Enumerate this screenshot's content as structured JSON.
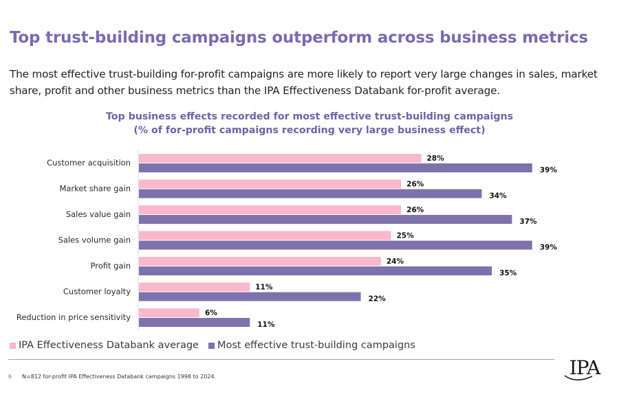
{
  "page": {
    "title": "Top trust-building campaigns outperform across business metrics",
    "lede": "The most effective trust-building for-profit campaigns are more likely to report very large changes in sales, market share, profit and other business metrics than the IPA Effectiveness Databank for-profit average.",
    "page_number": "6",
    "footnote": "N=812 for-profit IPA Effectiveness Databank campaigns 1998 to 2024.",
    "logo_text": "IPA"
  },
  "colors": {
    "title": "#7B6BAE",
    "average_series": "#F9B8CB",
    "trust_series": "#7E72AD",
    "rule": "#A79CCB"
  },
  "chart_data": {
    "type": "bar",
    "orientation": "horizontal",
    "title": "Top business effects recorded for most effective trust-building campaigns",
    "subtitle": "(% of for-profit campaigns recording very large business effect)",
    "xlabel": "",
    "ylabel": "",
    "xlim": [
      0,
      40
    ],
    "grid": false,
    "legend_position": "bottom-left",
    "categories": [
      "Customer acquisition",
      "Market share gain",
      "Sales value gain",
      "Sales volume gain",
      "Profit gain",
      "Customer loyalty",
      "Reduction in price sensitivity"
    ],
    "series": [
      {
        "name": "IPA Effectiveness Databank average",
        "color": "#F9B8CB",
        "values": [
          28,
          26,
          26,
          25,
          24,
          11,
          6
        ]
      },
      {
        "name": "Most effective trust-building campaigns",
        "color": "#7E72AD",
        "values": [
          39,
          34,
          37,
          39,
          35,
          22,
          11
        ]
      }
    ],
    "value_suffix": "%"
  }
}
